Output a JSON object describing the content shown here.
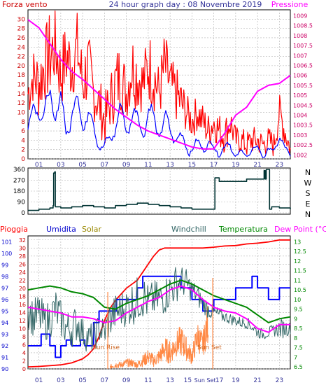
{
  "page_title": "24 hour graph day : 08 Novembre 2019",
  "colors": {
    "wind": "#ff0000",
    "gust": "#0000ff",
    "pressure": "#ff00ff",
    "direction": "#003333",
    "rain": "#ff0000",
    "humidity": "#0000ff",
    "solar": "#ff8844",
    "windchill": "#336666",
    "temperature": "#008800",
    "dewpoint": "#ff00ff",
    "axis_left_label": "#cc0000",
    "axis_humidity_label": "#0000cc",
    "axis_right_label": "#cc0066",
    "grid": "#b0b0b0"
  },
  "chart_data": [
    {
      "type": "line",
      "id": "wind-pressure",
      "title": "24 hour graph day : 08 Novembre 2019",
      "left_label": "Forza vento",
      "right_label": "Pressione",
      "x_ticks": [
        "01",
        "03",
        "05",
        "07",
        "09",
        "11",
        "13",
        "15",
        "17",
        "19",
        "21",
        "23"
      ],
      "xlim": [
        0,
        24
      ],
      "left_ticks": [
        "0",
        "2",
        "4",
        "6",
        "8",
        "10",
        "12",
        "14",
        "16",
        "18",
        "20",
        "22",
        "24",
        "26",
        "28",
        "30"
      ],
      "ylim_left": [
        0,
        32
      ],
      "right_ticks": [
        "1002",
        "1002.5",
        "1003",
        "1003.5",
        "1004",
        "1004.5",
        "1005",
        "1005.5",
        "1006",
        "1006.5",
        "1007",
        "1007.5",
        "1008",
        "1008.5",
        "1009"
      ],
      "ylim_right": [
        1001.8,
        1009.3
      ],
      "series": [
        {
          "key": "wind",
          "style": "spiky",
          "axis": "left",
          "x": [
            0,
            0.5,
            1,
            1.5,
            2,
            2.5,
            3,
            3.5,
            4,
            4.5,
            5,
            5.5,
            6,
            6.5,
            7,
            7.5,
            8,
            8.5,
            9,
            9.5,
            10,
            10.5,
            11,
            11.5,
            12,
            12.5,
            13,
            13.5,
            14,
            14.5,
            15,
            15.5,
            16,
            16.5,
            17,
            17.5,
            18,
            18.5,
            19,
            19.5,
            20,
            20.5,
            21,
            21.5,
            22,
            22.5,
            23,
            23.5,
            24
          ],
          "y": [
            14,
            18,
            16,
            20,
            22,
            24,
            18,
            22,
            20,
            24,
            16,
            20,
            14,
            12,
            8,
            12,
            16,
            18,
            14,
            20,
            18,
            16,
            20,
            18,
            14,
            20,
            16,
            14,
            12,
            10,
            8,
            10,
            8,
            6,
            8,
            6,
            5,
            8,
            4,
            4,
            3,
            4,
            4,
            3,
            4,
            3,
            10,
            6,
            2
          ],
          "spread": [
            6,
            6,
            8,
            8,
            10,
            8,
            8,
            8,
            8,
            8,
            8,
            8,
            6,
            6,
            6,
            6,
            8,
            8,
            6,
            8,
            8,
            6,
            8,
            8,
            6,
            8,
            6,
            6,
            6,
            4,
            4,
            4,
            4,
            4,
            4,
            4,
            4,
            4,
            3,
            3,
            3,
            3,
            3,
            3,
            3,
            3,
            4,
            4,
            2
          ]
        },
        {
          "key": "gust",
          "style": "wavy",
          "axis": "left",
          "x": [
            0,
            0.5,
            1,
            1.5,
            2,
            2.5,
            3,
            3.5,
            4,
            4.5,
            5,
            5.5,
            6,
            6.5,
            7,
            7.5,
            8,
            8.5,
            9,
            9.5,
            10,
            10.5,
            11,
            11.5,
            12,
            12.5,
            13,
            13.5,
            14,
            14.5,
            15,
            15.5,
            16,
            16.5,
            17,
            17.5,
            18,
            18.5,
            19,
            19.5,
            20,
            20.5,
            21,
            21.5,
            22,
            22.5,
            23,
            23.5,
            24
          ],
          "y": [
            6,
            10,
            12,
            8,
            14,
            10,
            12,
            6,
            10,
            12,
            8,
            10,
            6,
            4,
            2,
            4,
            8,
            10,
            6,
            10,
            8,
            6,
            10,
            8,
            6,
            8,
            6,
            5,
            4,
            3,
            2,
            3,
            3,
            3,
            2,
            2,
            2,
            3,
            1,
            1,
            1,
            2,
            2,
            1,
            2,
            1,
            6,
            2,
            0.5
          ],
          "spread": [
            3,
            3,
            3,
            3,
            4,
            3,
            3,
            3,
            3,
            3,
            3,
            3,
            3,
            2,
            2,
            2,
            3,
            3,
            2,
            3,
            3,
            2,
            3,
            3,
            2,
            3,
            2,
            2,
            2,
            2,
            1.5,
            1.5,
            1.5,
            1.5,
            1.5,
            1.5,
            1.5,
            1.5,
            1,
            1,
            1,
            1,
            1,
            1,
            1,
            1,
            2,
            1,
            0.5
          ]
        },
        {
          "key": "pressure",
          "style": "smooth",
          "axis": "right",
          "x": [
            0,
            1,
            2,
            3,
            4,
            5,
            6,
            7,
            8,
            9,
            10,
            11,
            12,
            13,
            14,
            15,
            16,
            17,
            18,
            19,
            20,
            21,
            22,
            23,
            24
          ],
          "y": [
            1008.8,
            1008.4,
            1007.6,
            1006.8,
            1006.2,
            1005.8,
            1005.3,
            1004.8,
            1004.3,
            1003.9,
            1003.5,
            1003.2,
            1003.0,
            1002.8,
            1002.6,
            1002.4,
            1002.3,
            1002.3,
            1003.1,
            1004.0,
            1004.4,
            1005.2,
            1005.5,
            1005.6,
            1006.0
          ]
        }
      ]
    },
    {
      "type": "line",
      "id": "wind-direction",
      "direction_labels": [
        "N",
        "W",
        "S",
        "E",
        "N"
      ],
      "y_ticks": [
        "0",
        "90",
        "180",
        "270",
        "360"
      ],
      "ylim": [
        0,
        360
      ],
      "xlim": [
        0,
        24
      ],
      "series": [
        {
          "key": "direction",
          "style": "step",
          "x": [
            0,
            1,
            2,
            2.3,
            2.35,
            2.45,
            2.5,
            3,
            4,
            5,
            6,
            7,
            8,
            9,
            10,
            11,
            12,
            13,
            14,
            15,
            16,
            16.9,
            17.1,
            17.5,
            18,
            19,
            20,
            21,
            21.6,
            21.7,
            21.8,
            22.1,
            22.3,
            23,
            24
          ],
          "y": [
            20,
            30,
            40,
            60,
            330,
            340,
            50,
            40,
            50,
            60,
            50,
            40,
            60,
            70,
            80,
            70,
            60,
            50,
            40,
            30,
            30,
            30,
            290,
            260,
            260,
            260,
            280,
            280,
            350,
            280,
            360,
            30,
            50,
            40,
            30
          ]
        }
      ]
    },
    {
      "type": "line",
      "id": "rain-temp",
      "labels": {
        "rain": "Pioggia",
        "humidity": "Umidita",
        "solar": "Solar",
        "windchill": "Windchill",
        "temperature": "Temperatura",
        "dewpoint": "Dew Point (°C)"
      },
      "annotations": {
        "sunrise": "Sun Rise",
        "sunset": "Sun Set",
        "sunrise_x": 7.3,
        "sunset_x": 16.9
      },
      "x_ticks": [
        "01",
        "03",
        "05",
        "07",
        "09",
        "11",
        "13",
        "Sun Set",
        "15",
        "17",
        "19",
        "21",
        "23"
      ],
      "xlim": [
        0,
        24
      ],
      "humidity_ticks": [
        "90",
        "91",
        "92",
        "93",
        "94",
        "95",
        "96",
        "97",
        "98",
        "99",
        "100",
        "101"
      ],
      "ylim_humidity": [
        90,
        101.5
      ],
      "rain_ticks": [
        "0",
        "2",
        "4",
        "6",
        "8",
        "10",
        "12",
        "14",
        "16",
        "18",
        "20",
        "22",
        "24",
        "26",
        "28",
        "30",
        "32"
      ],
      "ylim_rain": [
        0,
        33
      ],
      "temp_ticks": [
        "6.5",
        "7",
        "7.5",
        "8",
        "8.5",
        "9",
        "9.5",
        "10",
        "10.5",
        "11",
        "11.5",
        "12",
        "12.5",
        "13"
      ],
      "ylim_temp": [
        6.4,
        13.3
      ],
      "series": [
        {
          "key": "rain",
          "style": "smooth",
          "axis": "rain",
          "x": [
            0,
            1,
            2,
            3,
            4,
            5,
            5.5,
            6,
            6.5,
            7,
            7.5,
            8,
            9,
            10,
            11,
            11.5,
            12,
            12.5,
            13,
            14,
            15,
            16,
            17,
            18,
            19,
            20,
            21,
            22,
            23,
            24
          ],
          "y": [
            0.5,
            0.6,
            0.8,
            1.0,
            1.5,
            2.5,
            3.5,
            5,
            8,
            12,
            15,
            17,
            20,
            22,
            26,
            28,
            29.5,
            30,
            30,
            30,
            30,
            30,
            30.2,
            30.5,
            30.6,
            31,
            31.2,
            31.5,
            32,
            32
          ]
        },
        {
          "key": "humidity",
          "style": "step",
          "axis": "humidity",
          "x": [
            0,
            1.2,
            2,
            2.5,
            3,
            3.5,
            4,
            4.8,
            5.2,
            6,
            6.5,
            7,
            7.5,
            8.1,
            8.5,
            9,
            10,
            10.5,
            11,
            12,
            13,
            14,
            15,
            16,
            17,
            17.5,
            18,
            19,
            20,
            20.5,
            21,
            22,
            23,
            24
          ],
          "y": [
            92,
            93,
            92,
            91,
            92,
            92.5,
            92,
            92.5,
            92,
            94,
            95,
            95,
            95,
            96,
            96,
            96,
            97,
            98,
            98,
            98,
            98,
            97,
            96,
            95,
            96,
            96,
            96,
            97,
            97,
            98,
            97,
            96,
            97,
            97
          ]
        },
        {
          "key": "solar",
          "style": "spiky",
          "axis": "rain",
          "x": [
            7.5,
            8,
            8.5,
            9,
            9.5,
            10,
            10.5,
            11,
            11.5,
            12,
            12.5,
            13,
            13.5,
            14,
            14.5,
            15,
            15.5,
            16,
            16.5
          ],
          "y": [
            0.5,
            1,
            1,
            1.5,
            1.5,
            1,
            2,
            3,
            2,
            3,
            5,
            4,
            6,
            7,
            5,
            3,
            8,
            6,
            12
          ],
          "spread": [
            0.5,
            0.8,
            0.8,
            1,
            1,
            0.8,
            1.5,
            2,
            1.5,
            2,
            3,
            3,
            3,
            4,
            3,
            2,
            4,
            3,
            6
          ]
        },
        {
          "key": "windchill",
          "style": "spiky",
          "axis": "temp",
          "x": [
            0,
            0.5,
            1,
            1.5,
            2,
            2.5,
            3,
            3.5,
            4,
            4.5,
            5,
            5.5,
            6,
            6.5,
            7,
            7.5,
            8,
            8.5,
            9,
            9.5,
            10,
            10.5,
            11,
            11.5,
            12,
            12.5,
            13,
            13.5,
            14,
            14.5,
            15,
            15.5,
            16,
            16.5,
            17,
            17.5,
            18,
            18.5,
            19,
            19.5,
            20,
            20.5,
            21,
            21.5,
            22,
            22.5,
            23,
            23.5,
            24
          ],
          "y": [
            9.5,
            9,
            9.2,
            8.8,
            9,
            9.5,
            9,
            8.5,
            8.5,
            8.8,
            8.3,
            8,
            8,
            8.5,
            8.3,
            9,
            9.3,
            9.5,
            9.6,
            9.8,
            10,
            10.2,
            9.8,
            10,
            10,
            10.2,
            10.5,
            10.8,
            11,
            10.8,
            10.5,
            10.2,
            9.8,
            9.5,
            9.3,
            9.2,
            9.1,
            9,
            8.9,
            8.8,
            8.8,
            8.6,
            8.3,
            8.2,
            8.3,
            8.4,
            8.5,
            8.5,
            8.5
          ],
          "spread": [
            1,
            1,
            1.2,
            1,
            1,
            1.2,
            1,
            1,
            1,
            1,
            0.8,
            0.8,
            0.8,
            0.8,
            0.8,
            1,
            1,
            1,
            1,
            1.2,
            1.2,
            1.2,
            1,
            1,
            1,
            1,
            1,
            1,
            0.8,
            0.8,
            0.6,
            0.6,
            0.5,
            0.5,
            0.4,
            0.4,
            0.3,
            0.3,
            0.3,
            0.3,
            0.3,
            0.3,
            0.3,
            0.3,
            0.3,
            0.3,
            0.5,
            0.5,
            0.3
          ]
        },
        {
          "key": "temperature",
          "style": "smooth",
          "axis": "temp",
          "x": [
            0,
            1,
            2,
            3,
            4,
            5,
            6,
            7,
            8,
            9,
            10,
            11,
            12,
            13,
            14,
            15,
            16,
            17,
            18,
            19,
            20,
            21,
            22,
            23,
            24
          ],
          "y": [
            10.5,
            10.6,
            10.7,
            10.6,
            10.4,
            10.3,
            10.1,
            9.6,
            9.5,
            9.8,
            10.0,
            10.2,
            10.5,
            10.8,
            11.0,
            10.8,
            10.5,
            10.2,
            10.0,
            9.8,
            9.6,
            9.2,
            8.8,
            9.0,
            9.1
          ]
        },
        {
          "key": "dewpoint",
          "style": "smooth",
          "axis": "temp",
          "x": [
            0,
            1,
            2,
            3,
            4,
            5,
            6,
            7,
            8,
            9,
            10,
            11,
            12,
            13,
            14,
            15,
            16,
            17,
            18,
            19,
            20,
            21,
            22,
            23,
            24
          ],
          "y": [
            9.6,
            9.5,
            9.4,
            9.3,
            9.1,
            9.1,
            9.0,
            8.8,
            8.9,
            9.3,
            9.6,
            9.9,
            10.1,
            10.5,
            10.7,
            10.5,
            10.0,
            9.6,
            9.4,
            9.3,
            9.0,
            8.5,
            8.3,
            8.7,
            8.7
          ]
        }
      ]
    }
  ]
}
